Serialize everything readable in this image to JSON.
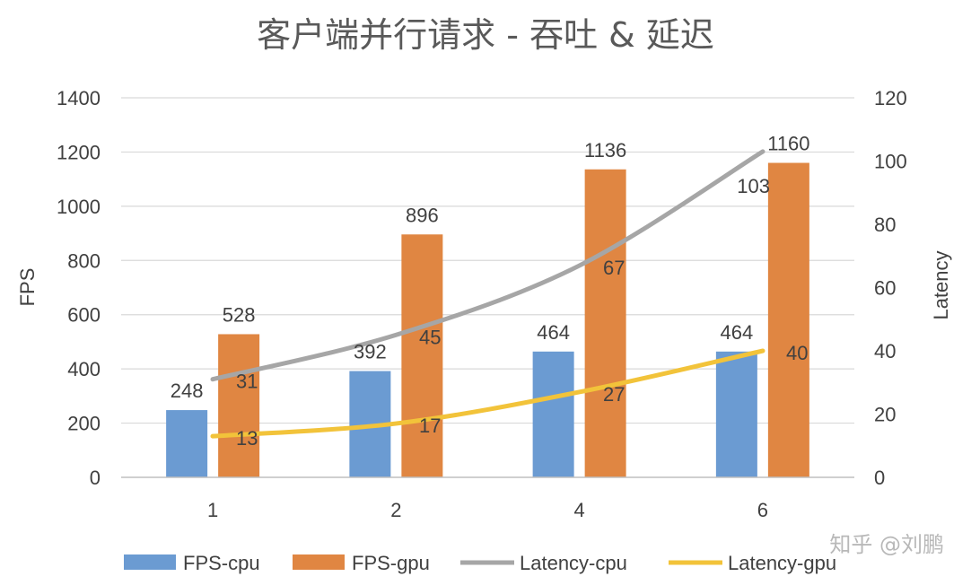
{
  "chart_data": {
    "type": "bar",
    "title": "客户端并行请求 - 吞吐 & 延迟",
    "categories": [
      "1",
      "2",
      "4",
      "6"
    ],
    "y_left": {
      "label": "FPS",
      "ylim": [
        0,
        1400
      ],
      "ticks": [
        "0",
        "200",
        "400",
        "600",
        "800",
        "1000",
        "1200",
        "1400"
      ]
    },
    "y_right": {
      "label": "Latency",
      "ylim": [
        0,
        120
      ],
      "ticks": [
        "0",
        "20",
        "40",
        "60",
        "80",
        "100",
        "120"
      ]
    },
    "grid": true,
    "legend_position": "bottom",
    "bar_series": [
      {
        "name": "FPS-cpu",
        "color": "#6b9bd2",
        "values": [
          248,
          392,
          464,
          464
        ],
        "labels": [
          "248",
          "392",
          "464",
          "464"
        ]
      },
      {
        "name": "FPS-gpu",
        "color": "#e08642",
        "values": [
          528,
          896,
          1136,
          1160
        ],
        "labels": [
          "528",
          "896",
          "1136",
          "1160"
        ]
      }
    ],
    "line_series": [
      {
        "name": "Latency-cpu",
        "color": "#a6a6a6",
        "values": [
          31,
          45,
          67,
          103
        ],
        "labels": [
          "31",
          "45",
          "67",
          "103"
        ]
      },
      {
        "name": "Latency-gpu",
        "color": "#f2c33a",
        "values": [
          13,
          17,
          27,
          40
        ],
        "labels": [
          "13",
          "17",
          "27",
          "40"
        ]
      }
    ]
  },
  "watermark": "知乎 @刘鹏"
}
